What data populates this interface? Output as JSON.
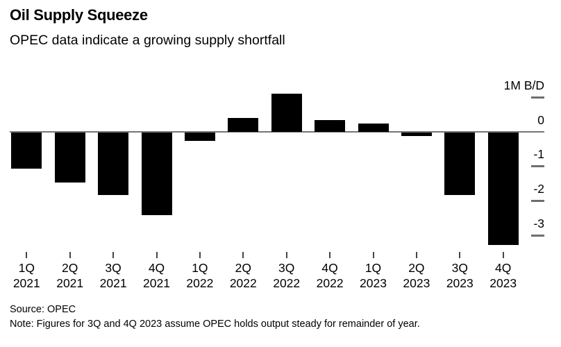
{
  "chart_data": {
    "type": "bar",
    "title": "Oil Supply Squeeze",
    "subtitle": "OPEC data indicate a growing supply shortfall",
    "unit_label": "1M B/D",
    "categories": [
      {
        "quarter": "1Q",
        "year": "2021"
      },
      {
        "quarter": "2Q",
        "year": "2021"
      },
      {
        "quarter": "3Q",
        "year": "2021"
      },
      {
        "quarter": "4Q",
        "year": "2021"
      },
      {
        "quarter": "1Q",
        "year": "2022"
      },
      {
        "quarter": "2Q",
        "year": "2022"
      },
      {
        "quarter": "3Q",
        "year": "2022"
      },
      {
        "quarter": "4Q",
        "year": "2022"
      },
      {
        "quarter": "1Q",
        "year": "2023"
      },
      {
        "quarter": "2Q",
        "year": "2023"
      },
      {
        "quarter": "3Q",
        "year": "2023"
      },
      {
        "quarter": "4Q",
        "year": "2023"
      }
    ],
    "values": [
      -1.05,
      -1.45,
      -1.8,
      -2.4,
      -0.25,
      0.4,
      1.1,
      0.35,
      0.25,
      -0.1,
      -1.8,
      -3.25
    ],
    "y_axis": {
      "side": "right",
      "ticks": [
        1,
        0,
        -1,
        -2,
        -3
      ],
      "tick_labels": [
        "1M B/D",
        "0",
        "-1",
        "-2",
        "-3"
      ],
      "ylim": [
        -3.6,
        1.4
      ],
      "grid": false
    },
    "legend": null,
    "colors": {
      "bar": "#000000",
      "zero_line": "#757575",
      "y_tick_dash": "#6e6e6e",
      "x_tick_dash": "#454545",
      "text": "#000000"
    }
  },
  "footer": {
    "source": "Source: OPEC",
    "note": "Note: Figures for 3Q and 4Q 2023 assume OPEC holds output steady for remainder of year."
  }
}
